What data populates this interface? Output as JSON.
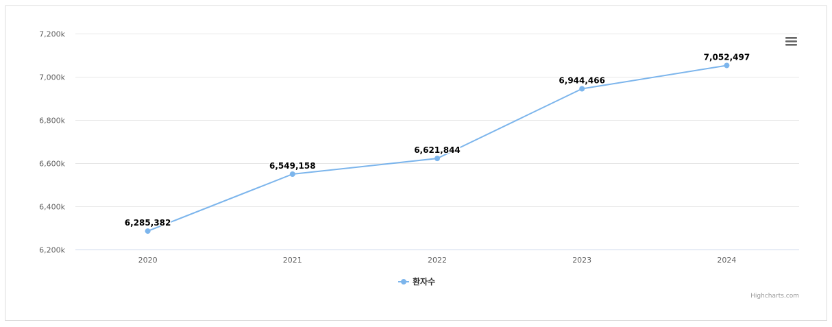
{
  "chart_data": {
    "type": "line",
    "categories": [
      "2020",
      "2021",
      "2022",
      "2023",
      "2024"
    ],
    "series": [
      {
        "name": "환자수",
        "values": [
          6285382,
          6549158,
          6621844,
          6944466,
          7052497
        ],
        "color": "#7cb5ec"
      }
    ],
    "data_labels": [
      "6,285,382",
      "6,549,158",
      "6,621,844",
      "6,944,466",
      "7,052,497"
    ],
    "ylim": [
      6200000,
      7200000
    ],
    "yticks": [
      6200000,
      6400000,
      6600000,
      6800000,
      7000000,
      7200000
    ],
    "ytick_labels": [
      "6,200k",
      "6,400k",
      "6,600k",
      "6,800k",
      "7,000k",
      "7,200k"
    ],
    "grid": true,
    "legend": "bottom-center"
  },
  "credits": "Highcharts.com",
  "menu_icon": "hamburger-menu-icon",
  "colors": {
    "series": "#7cb5ec",
    "grid": "#e6e6e6",
    "axis_text": "#606060"
  }
}
